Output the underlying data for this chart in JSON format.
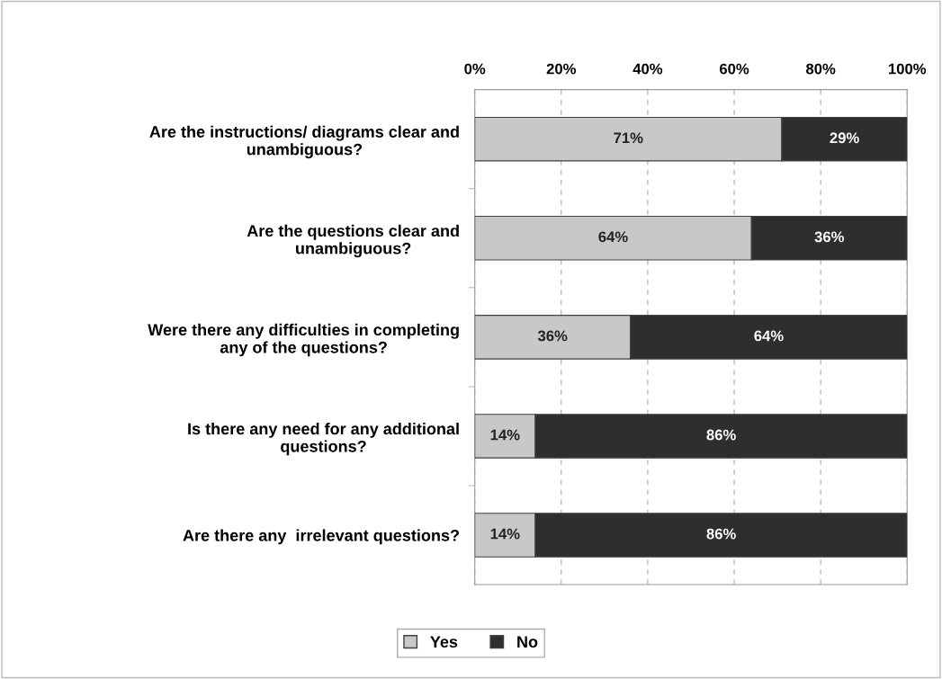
{
  "chart_data": {
    "type": "bar",
    "orientation": "horizontal",
    "stacked": true,
    "categories": [
      "Are the instructions/ diagrams clear and\nunambiguous?",
      "Are the questions clear and\nunambiguous?",
      "Were there any difficulties in completing\nany of the questions?",
      "Is there any need for any additional\nquestions?",
      "Are there any  irrelevant questions?"
    ],
    "series": [
      {
        "name": "Yes",
        "color": "#c8c8c8",
        "values": [
          71,
          64,
          36,
          14,
          14
        ],
        "value_labels": [
          "71%",
          "64%",
          "36%",
          "14%",
          "14%"
        ]
      },
      {
        "name": "No",
        "color": "#2e2e2e",
        "values": [
          29,
          36,
          64,
          86,
          86
        ],
        "value_labels": [
          "29%",
          "36%",
          "64%",
          "86%",
          "86%"
        ]
      }
    ],
    "xlim": [
      0,
      100
    ],
    "xticks": [
      {
        "value": 0,
        "label": "0%"
      },
      {
        "value": 20,
        "label": "20%"
      },
      {
        "value": 40,
        "label": "40%"
      },
      {
        "value": 60,
        "label": "60%"
      },
      {
        "value": 80,
        "label": "80%"
      },
      {
        "value": 100,
        "label": "100%"
      }
    ],
    "grid": "x",
    "legend": "bottom"
  }
}
